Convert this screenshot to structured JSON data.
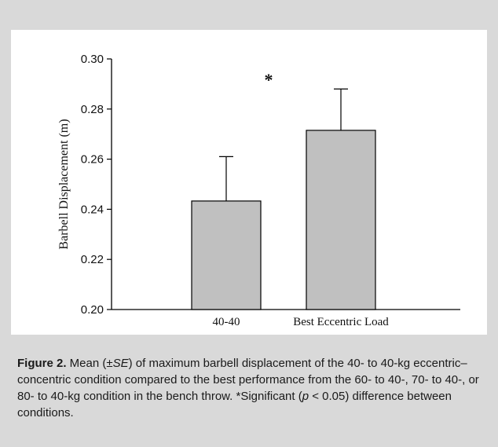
{
  "chart_data": {
    "type": "bar",
    "categories": [
      "40-40",
      "Best Eccentric Load"
    ],
    "values": [
      0.2433,
      0.2715
    ],
    "error_plus": [
      0.0177,
      0.0165
    ],
    "ylabel": "Barbell Displacement (m)",
    "xlabel": "",
    "ylim": [
      0.2,
      0.3
    ],
    "yticks": [
      "0.20",
      "0.22",
      "0.24",
      "0.26",
      "0.28",
      "0.30"
    ],
    "annotation": "*",
    "grid": false,
    "bar_color": "#c0c0c0"
  },
  "caption": {
    "label": "Figure 2.",
    "part1": " Mean (±",
    "se": "SE",
    "part2": ") of maximum barbell displacement of the 40- to 40-kg eccentric–concentric condition compared to the best performance from the 60- to 40-, 70- to 40-, or 80- to 40-kg condition in the bench throw. *Significant (",
    "p": "p",
    "part3": " < 0.05) difference between conditions."
  }
}
